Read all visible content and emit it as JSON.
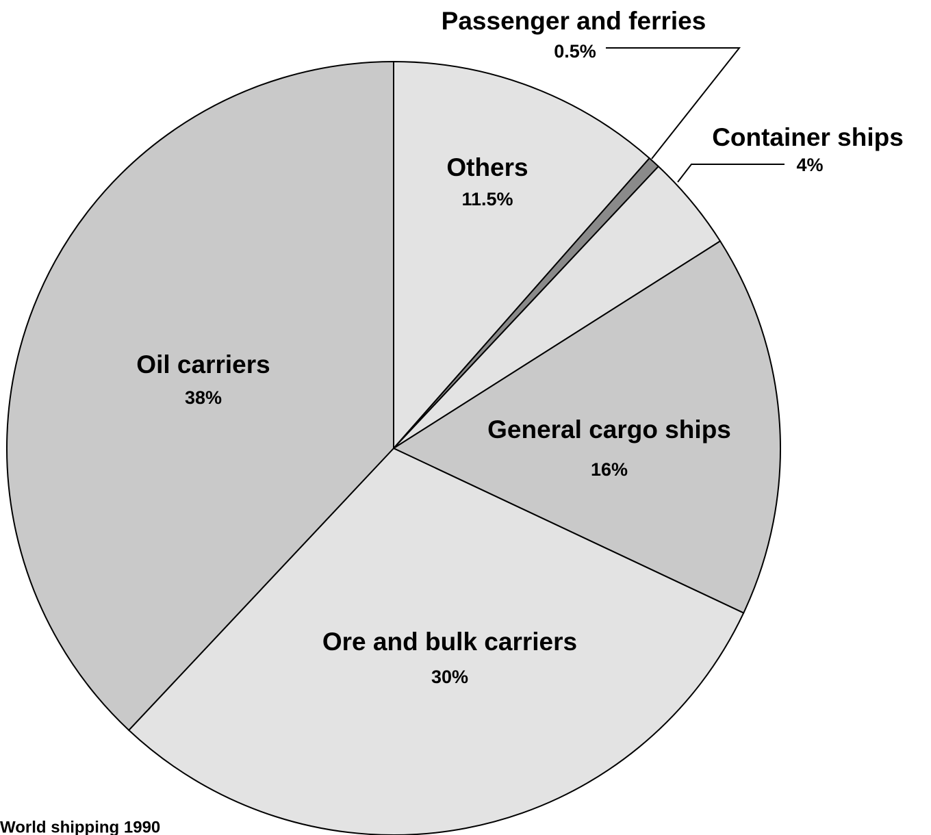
{
  "chart_data": {
    "type": "pie",
    "categories": [
      "Others",
      "Passenger and ferries",
      "Container ships",
      "General cargo ships",
      "Ore and bulk carriers",
      "Oil carriers"
    ],
    "values": [
      11.5,
      0.5,
      4,
      16,
      30,
      38
    ],
    "value_labels": [
      "11.5%",
      "0.5%",
      "4%",
      "16%",
      "30%",
      "38%"
    ],
    "colors": [
      "#e3e3e3",
      "#8a8a8a",
      "#e3e3e3",
      "#c9c9c9",
      "#e3e3e3",
      "#c9c9c9"
    ],
    "caption": "World shipping 1990"
  }
}
